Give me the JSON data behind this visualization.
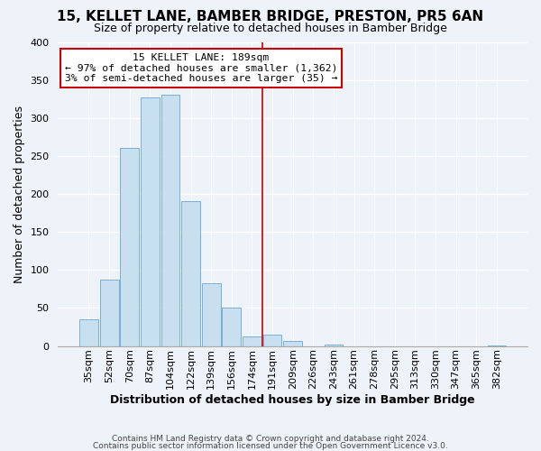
{
  "title1": "15, KELLET LANE, BAMBER BRIDGE, PRESTON, PR5 6AN",
  "title2": "Size of property relative to detached houses in Bamber Bridge",
  "xlabel": "Distribution of detached houses by size in Bamber Bridge",
  "ylabel": "Number of detached properties",
  "bar_labels": [
    "35sqm",
    "52sqm",
    "70sqm",
    "87sqm",
    "104sqm",
    "122sqm",
    "139sqm",
    "156sqm",
    "174sqm",
    "191sqm",
    "209sqm",
    "226sqm",
    "243sqm",
    "261sqm",
    "278sqm",
    "295sqm",
    "313sqm",
    "330sqm",
    "347sqm",
    "365sqm",
    "382sqm"
  ],
  "bar_values": [
    35,
    87,
    260,
    327,
    330,
    190,
    82,
    50,
    13,
    15,
    7,
    0,
    2,
    0,
    0,
    0,
    0,
    0,
    0,
    0,
    1
  ],
  "bar_color": "#c8dff0",
  "bar_edge_color": "#7ab0d0",
  "vline_color": "#cc0000",
  "annotation_title": "15 KELLET LANE: 189sqm",
  "annotation_line1": "← 97% of detached houses are smaller (1,362)",
  "annotation_line2": "3% of semi-detached houses are larger (35) →",
  "annotation_box_color": "#ffffff",
  "annotation_box_edge": "#cc0000",
  "ylim": [
    0,
    400
  ],
  "yticks": [
    0,
    50,
    100,
    150,
    200,
    250,
    300,
    350,
    400
  ],
  "footer1": "Contains HM Land Registry data © Crown copyright and database right 2024.",
  "footer2": "Contains public sector information licensed under the Open Government Licence v3.0.",
  "bg_color": "#eef2f9",
  "grid_color": "#ffffff",
  "title1_fontsize": 11,
  "title2_fontsize": 9,
  "ylabel_fontsize": 9,
  "xlabel_fontsize": 9,
  "tick_fontsize": 8,
  "footer_fontsize": 6.5,
  "vline_x_index": 9
}
